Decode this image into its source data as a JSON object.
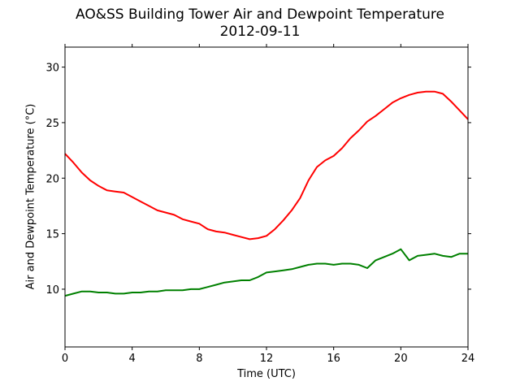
{
  "chart_data": {
    "type": "line",
    "title": "AO&SS Building Tower Air and Dewpoint Temperature",
    "subtitle": "2012-09-11",
    "xlabel": "Time (UTC)",
    "ylabel": "Air and Dewpoint Temperature (°C)",
    "xlim": [
      0,
      24
    ],
    "ylim": [
      4.8,
      31.8
    ],
    "xticks": [
      0,
      4,
      8,
      12,
      16,
      20,
      24
    ],
    "yticks": [
      10,
      15,
      20,
      25,
      30
    ],
    "grid": false,
    "series": [
      {
        "color": "#ff0000",
        "x": [
          0,
          0.5,
          1,
          1.5,
          2,
          2.5,
          3,
          3.5,
          4,
          4.5,
          5,
          5.5,
          6,
          6.5,
          7,
          7.5,
          8,
          8.5,
          9,
          9.5,
          10,
          10.5,
          11,
          11.5,
          12,
          12.5,
          13,
          13.5,
          14,
          14.5,
          15,
          15.5,
          16,
          16.5,
          17,
          17.5,
          18,
          18.5,
          19,
          19.5,
          20,
          20.5,
          21,
          21.5,
          22,
          22.5,
          23,
          23.5,
          24
        ],
        "y": [
          22.2,
          21.4,
          20.5,
          19.8,
          19.3,
          18.9,
          18.8,
          18.7,
          18.3,
          17.9,
          17.5,
          17.1,
          16.9,
          16.7,
          16.3,
          16.1,
          15.9,
          15.4,
          15.2,
          15.1,
          14.9,
          14.7,
          14.5,
          14.6,
          14.8,
          15.4,
          16.2,
          17.1,
          18.2,
          19.8,
          21.0,
          21.6,
          22.0,
          22.7,
          23.6,
          24.3,
          25.1,
          25.6,
          26.2,
          26.8,
          27.2,
          27.5,
          27.7,
          27.8,
          27.8,
          27.6,
          26.9,
          26.1,
          25.3
        ]
      },
      {
        "color": "#008000",
        "x": [
          0,
          0.5,
          1,
          1.5,
          2,
          2.5,
          3,
          3.5,
          4,
          4.5,
          5,
          5.5,
          6,
          6.5,
          7,
          7.5,
          8,
          8.5,
          9,
          9.5,
          10,
          10.5,
          11,
          11.5,
          12,
          12.5,
          13,
          13.5,
          14,
          14.5,
          15,
          15.5,
          16,
          16.5,
          17,
          17.5,
          18,
          18.5,
          19,
          19.5,
          20,
          20.5,
          21,
          21.5,
          22,
          22.5,
          23,
          23.5,
          24
        ],
        "y": [
          9.4,
          9.6,
          9.8,
          9.8,
          9.7,
          9.7,
          9.6,
          9.6,
          9.7,
          9.7,
          9.8,
          9.8,
          9.9,
          9.9,
          9.9,
          10.0,
          10.0,
          10.2,
          10.4,
          10.6,
          10.7,
          10.8,
          10.8,
          11.1,
          11.5,
          11.6,
          11.7,
          11.8,
          12.0,
          12.2,
          12.3,
          12.3,
          12.2,
          12.3,
          12.3,
          12.2,
          11.9,
          12.6,
          12.9,
          13.2,
          13.6,
          12.6,
          13.0,
          13.1,
          13.2,
          13.0,
          12.9,
          13.2,
          13.2
        ]
      }
    ]
  }
}
